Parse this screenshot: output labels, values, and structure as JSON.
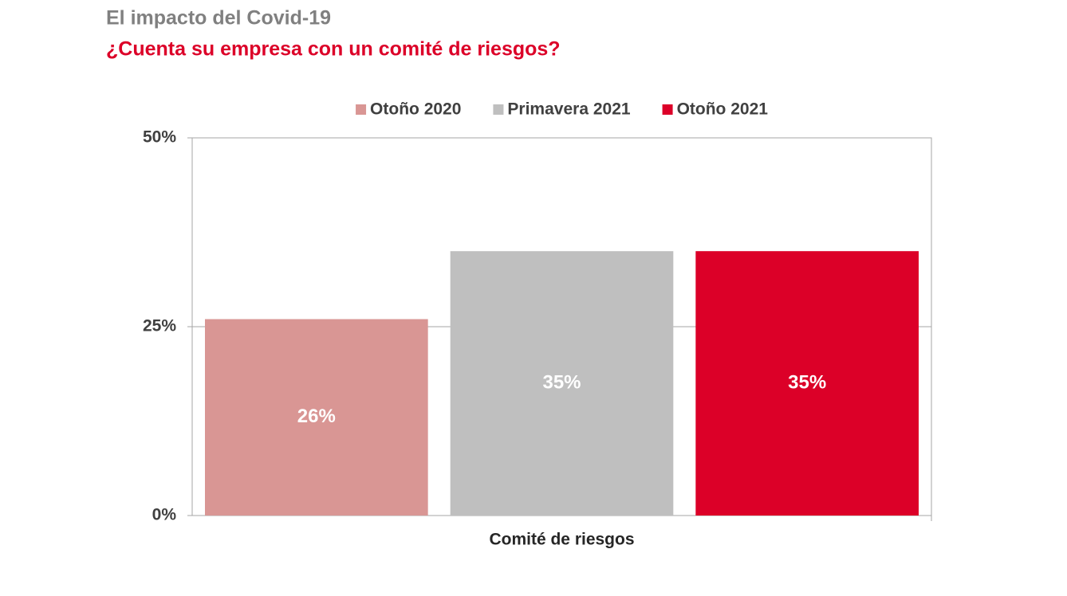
{
  "chart_data": {
    "type": "bar",
    "title": "El impacto del Covid-19",
    "subtitle": "¿Cuenta su empresa con un comité de riesgos?",
    "categories": [
      "Comité de riesgos"
    ],
    "series": [
      {
        "name": "Otoño 2020",
        "color": "#d99694",
        "values": [
          26
        ],
        "value_labels": [
          "26%"
        ]
      },
      {
        "name": "Primavera 2021",
        "color": "#bfbfbf",
        "values": [
          35
        ],
        "value_labels": [
          "35%"
        ]
      },
      {
        "name": "Otoño 2021",
        "color": "#dc0028",
        "values": [
          35
        ],
        "value_labels": [
          "35%"
        ]
      }
    ],
    "ylim": [
      0,
      50
    ],
    "yticks": [
      {
        "value": 0,
        "label": "0%"
      },
      {
        "value": 25,
        "label": "25%"
      },
      {
        "value": 50,
        "label": "50%"
      }
    ],
    "grid": true,
    "legend": "top"
  }
}
